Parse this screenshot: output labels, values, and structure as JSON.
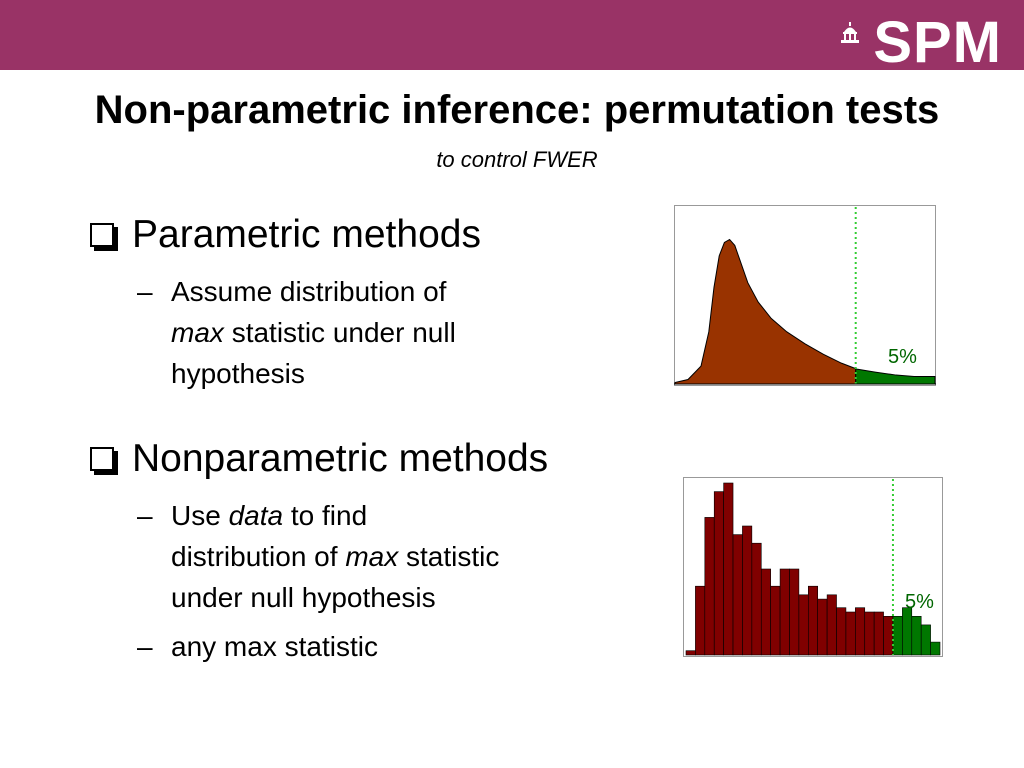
{
  "logo": {
    "text": "SPM",
    "icon": "capitol-icon"
  },
  "title": "Non-parametric inference: permutation tests",
  "subtitle": "to control FWER",
  "bullets": [
    {
      "label": "Parametric methods",
      "subs": [
        {
          "dash": "–",
          "parts": [
            "Assume distribution of",
            "max",
            "statistic under null",
            "hypothesis"
          ]
        }
      ]
    },
    {
      "label": "Nonparametric methods",
      "subs": [
        {
          "dash": "–",
          "parts": [
            "Use",
            "data",
            "to find",
            "distribution of",
            "max",
            "statistic",
            "under null hypothesis"
          ]
        },
        {
          "dash": "–",
          "text": "any max statistic"
        }
      ]
    }
  ],
  "colors": {
    "header": "#993366",
    "parametric_fill": "#993300",
    "histogram_fill": "#800000",
    "tail_fill": "#007700",
    "threshold": "#33cc33"
  },
  "chart_data": [
    {
      "type": "area",
      "annotation": "5%",
      "threshold_fraction": 0.695,
      "curve": [
        [
          0.0,
          0.01
        ],
        [
          0.05,
          0.03
        ],
        [
          0.1,
          0.12
        ],
        [
          0.13,
          0.35
        ],
        [
          0.15,
          0.65
        ],
        [
          0.17,
          0.86
        ],
        [
          0.19,
          0.95
        ],
        [
          0.21,
          0.97
        ],
        [
          0.23,
          0.93
        ],
        [
          0.25,
          0.83
        ],
        [
          0.28,
          0.68
        ],
        [
          0.32,
          0.55
        ],
        [
          0.37,
          0.44
        ],
        [
          0.43,
          0.35
        ],
        [
          0.5,
          0.27
        ],
        [
          0.57,
          0.2
        ],
        [
          0.64,
          0.14
        ],
        [
          0.7,
          0.1
        ],
        [
          0.77,
          0.08
        ],
        [
          0.85,
          0.06
        ],
        [
          0.92,
          0.05
        ],
        [
          1.0,
          0.05
        ]
      ]
    },
    {
      "type": "bar",
      "annotation": "5%",
      "threshold_bin": 22,
      "values": [
        0.5,
        8,
        16,
        19,
        20,
        14,
        15,
        13,
        10,
        8,
        10,
        10,
        7,
        8,
        6.5,
        7,
        5.5,
        5,
        5.5,
        5,
        5,
        4.5,
        4.5,
        5.5,
        4.5,
        3.5,
        1.5
      ]
    }
  ]
}
